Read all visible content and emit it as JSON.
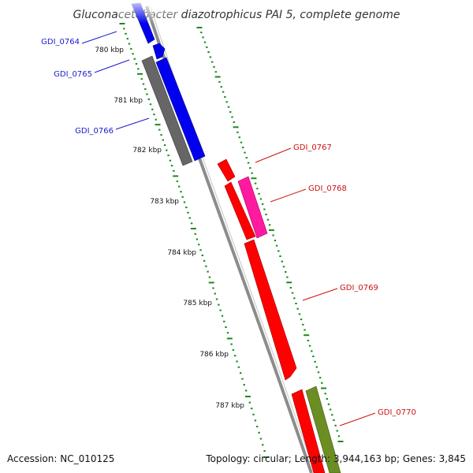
{
  "title": "Gluconacetobacter diazotrophicus PAI 5, complete genome",
  "footer": {
    "accession": "Accession: NC_010125",
    "summary": "Topology: circular; Length: 3,944,163 bp; Genes: 3,845"
  },
  "ticks": [
    "780 kbp",
    "781 kbp",
    "782 kbp",
    "783 kbp",
    "784 kbp",
    "785 kbp",
    "786 kbp",
    "787 kbp"
  ],
  "genes": {
    "forward": [
      "GDI_0764",
      "GDI_0765",
      "GDI_0766"
    ],
    "reverse": [
      "GDI_0767",
      "GDI_0768",
      "GDI_0769",
      "GDI_0770"
    ]
  },
  "colors": {
    "forward_gene": "#0000ee",
    "reverse_gene": "#ff0000",
    "magenta_gene": "#ff1aa0",
    "olive_gene": "#6b8e23",
    "gray_gene": "#666666",
    "backbone": "#8c8c8c",
    "tick_marks": "#1a8a1a",
    "forward_label": "#1a1acc",
    "reverse_label": "#cc1111"
  }
}
